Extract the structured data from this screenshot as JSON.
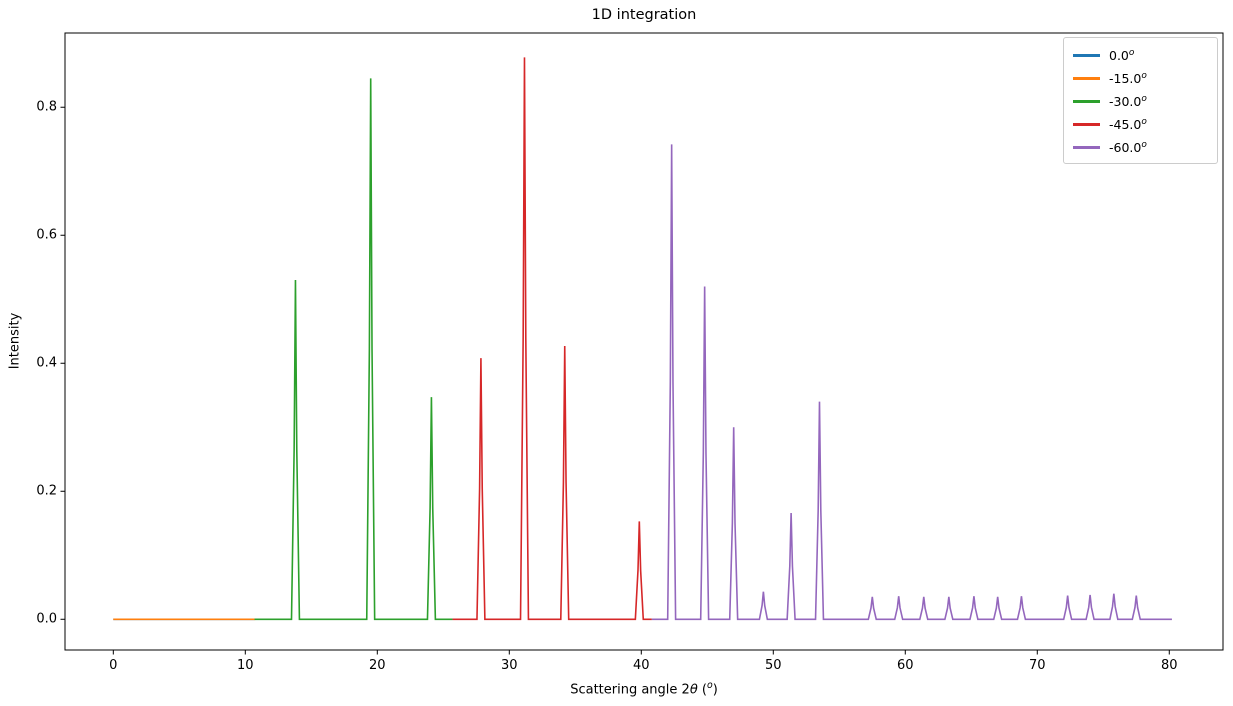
{
  "title": "1D integration",
  "axes": {
    "ylabel": "Intensity",
    "xlabel_prefix": "Scattering angle 2",
    "xlabel_theta": "θ",
    "xlabel_mid": " (",
    "xlabel_sup": "o",
    "xlabel_end": ")",
    "x_tick_labels": [
      "0",
      "10",
      "20",
      "30",
      "40",
      "50",
      "60",
      "70",
      "80"
    ],
    "y_tick_labels": [
      "0.0",
      "0.2",
      "0.4",
      "0.6",
      "0.8"
    ]
  },
  "legend": {
    "items": [
      {
        "label": "0.0",
        "sup": "o"
      },
      {
        "label": "-15.0",
        "sup": "o"
      },
      {
        "label": "-30.0",
        "sup": "o"
      },
      {
        "label": "-45.0",
        "sup": "o"
      },
      {
        "label": "-60.0",
        "sup": "o"
      }
    ]
  },
  "chart_data": {
    "type": "line",
    "title": "1D integration",
    "xlabel": "Scattering angle 2θ (°)",
    "ylabel": "Intensity",
    "grid": false,
    "legend_position": "upper right",
    "x_ticks": [
      0,
      10,
      20,
      30,
      40,
      50,
      60,
      70,
      80
    ],
    "y_ticks": [
      0.0,
      0.2,
      0.4,
      0.6,
      0.8
    ],
    "x_range_shown": [
      -3.66,
      84.07
    ],
    "y_range_shown": [
      -0.048,
      0.916
    ],
    "series": [
      {
        "name": "0.0",
        "color": "#1f77b4",
        "x_start": 0.0,
        "x_end": 10.7,
        "baseline": 0.0,
        "peaks": []
      },
      {
        "name": "-15.0",
        "color": "#ff7f0e",
        "x_start": 0.0,
        "x_end": 10.75,
        "baseline": 0.0,
        "peaks": []
      },
      {
        "name": "-30.0",
        "color": "#2ca02c",
        "x_start": 10.7,
        "x_end": 25.7,
        "baseline": 0.0,
        "peaks": [
          [
            13.8,
            0.53
          ],
          [
            19.5,
            0.845
          ],
          [
            24.1,
            0.347
          ]
        ]
      },
      {
        "name": "-45.0",
        "color": "#d62728",
        "x_start": 25.7,
        "x_end": 40.8,
        "baseline": 0.0,
        "peaks": [
          [
            27.85,
            0.408
          ],
          [
            31.15,
            0.878
          ],
          [
            34.2,
            0.427
          ],
          [
            39.85,
            0.153
          ]
        ]
      },
      {
        "name": "-60.0",
        "color": "#9467bd",
        "x_start": 40.8,
        "x_end": 80.2,
        "baseline": 0.0,
        "peaks": [
          [
            42.3,
            0.742
          ],
          [
            44.8,
            0.52
          ],
          [
            47.0,
            0.3
          ],
          [
            49.25,
            0.043
          ],
          [
            51.35,
            0.166
          ],
          [
            53.5,
            0.34
          ],
          [
            57.5,
            0.035
          ],
          [
            59.5,
            0.036
          ],
          [
            61.4,
            0.035
          ],
          [
            63.3,
            0.035
          ],
          [
            65.2,
            0.036
          ],
          [
            67.0,
            0.035
          ],
          [
            68.8,
            0.036
          ],
          [
            72.3,
            0.037
          ],
          [
            74.0,
            0.038
          ],
          [
            75.8,
            0.04
          ],
          [
            77.5,
            0.037
          ]
        ]
      }
    ]
  }
}
